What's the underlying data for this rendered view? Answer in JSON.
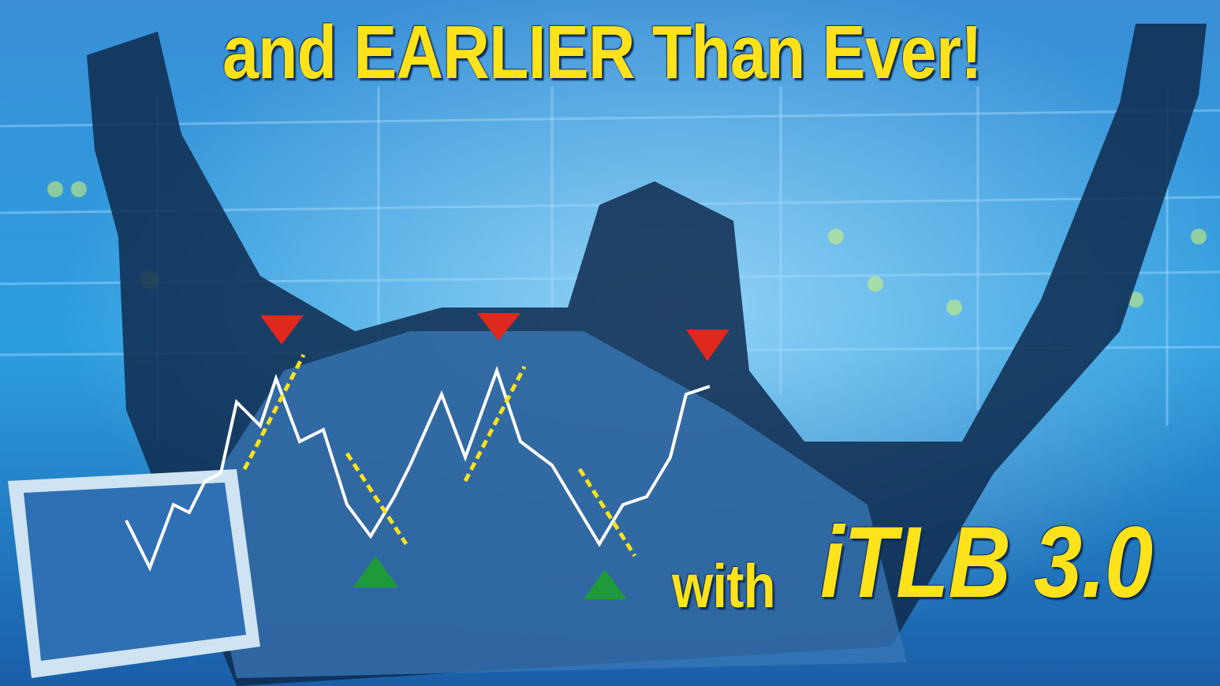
{
  "headline": "and EARLIER Than Ever!",
  "tagline": {
    "prefix": "with",
    "brand": "iTLB 3.0"
  }
}
